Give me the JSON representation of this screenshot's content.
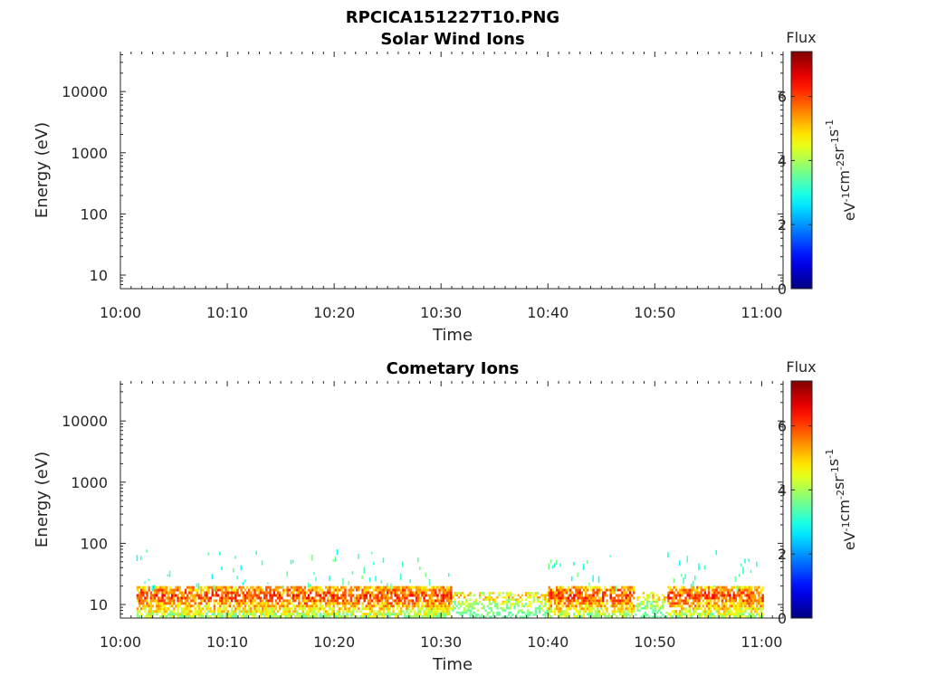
{
  "figure": {
    "title": "RPCICA151227T10.PNG"
  },
  "chart_data": [
    {
      "type": "heatmap",
      "title": "Solar Wind Ions",
      "xlabel": "Time",
      "ylabel": "Energy (eV)",
      "x_ticks": [
        "10:00",
        "10:10",
        "10:20",
        "10:30",
        "10:40",
        "10:50",
        "11:00"
      ],
      "y_ticks": [
        "10",
        "100",
        "1000",
        "10000"
      ],
      "xlim": [
        "10:00",
        "11:02"
      ],
      "ylim": [
        6,
        45000
      ],
      "yscale": "log",
      "colorbar": {
        "label": "Flux",
        "units_base": "eV",
        "units_parts": [
          {
            "text": "eV",
            "sup": "-1"
          },
          {
            "text": "cm",
            "sup": "-2"
          },
          {
            "text": "sr",
            "sup": "-1"
          },
          {
            "text": "s",
            "sup": "-1"
          }
        ],
        "ticks": [
          "0",
          "2",
          "4",
          "6"
        ],
        "range": [
          0,
          7.4
        ],
        "colormap": "jet"
      },
      "data_summary": "no flux recorded"
    },
    {
      "type": "heatmap",
      "title": "Cometary Ions",
      "xlabel": "Time",
      "ylabel": "Energy (eV)",
      "x_ticks": [
        "10:00",
        "10:10",
        "10:20",
        "10:30",
        "10:40",
        "10:50",
        "11:00"
      ],
      "y_ticks": [
        "10",
        "100",
        "1000",
        "10000"
      ],
      "xlim": [
        "10:00",
        "11:02"
      ],
      "ylim": [
        6,
        45000
      ],
      "yscale": "log",
      "colorbar": {
        "label": "Flux",
        "units_parts": [
          {
            "text": "eV",
            "sup": "-1"
          },
          {
            "text": "cm",
            "sup": "-2"
          },
          {
            "text": "sr",
            "sup": "-1"
          },
          {
            "text": "s",
            "sup": "-1"
          }
        ],
        "ticks": [
          "0",
          "2",
          "4",
          "6"
        ],
        "range": [
          0,
          7.4
        ],
        "colormap": "jet"
      },
      "data_start": "10:01.5",
      "data_end": "11:00",
      "band_energy_range": [
        6,
        20
      ],
      "band_peak_energy": 13,
      "band_flux_range": [
        3.5,
        6.8
      ],
      "sparse_energy_range": [
        20,
        80
      ],
      "sparse_flux_range": [
        2.8,
        3.8
      ],
      "gap_intervals": [
        [
          "10:31",
          "10:40"
        ],
        [
          "10:48",
          "10:51"
        ]
      ]
    }
  ]
}
